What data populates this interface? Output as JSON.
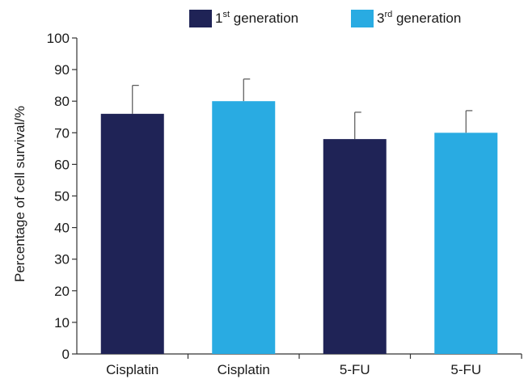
{
  "chart_data": {
    "type": "bar",
    "ylabel": "Percentage of cell survival/%",
    "xlabel": "",
    "title": "",
    "ylim": [
      0,
      100
    ],
    "yticks": [
      0,
      10,
      20,
      30,
      40,
      50,
      60,
      70,
      80,
      90,
      100
    ],
    "grid": false,
    "legend_position": "top",
    "legend": [
      {
        "series": "first",
        "base": "1",
        "sup": "st",
        "rest": " generation",
        "color": "#1f2356"
      },
      {
        "series": "third",
        "base": "3",
        "sup": "rd",
        "rest": " generation",
        "color": "#29abe2"
      }
    ],
    "bars": [
      {
        "category": "Cisplatin",
        "series": "first",
        "value": 76,
        "error": 9
      },
      {
        "category": "Cisplatin",
        "series": "third",
        "value": 80,
        "error": 7
      },
      {
        "category": "5-FU",
        "series": "first",
        "value": 68,
        "error": 8.5
      },
      {
        "category": "5-FU",
        "series": "third",
        "value": 70,
        "error": 7
      }
    ]
  }
}
